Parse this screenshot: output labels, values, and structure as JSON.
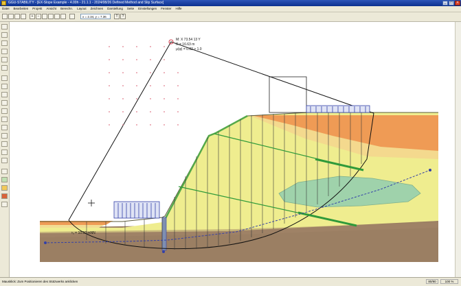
{
  "window": {
    "title": "GGU-STABILITY - [EX-Slope Example - 4.00h - 21.1.1 - 2024/08/26 Defined Method and Slip Surface]",
    "controls": [
      "_",
      "□",
      "×"
    ]
  },
  "menu": {
    "items": [
      "Datei",
      "Bearbeiten",
      "Projekt",
      "Ansicht",
      "Berechn.",
      "Layout",
      "Zeichnen",
      "Darstellung",
      "Seite",
      "Einstellungen",
      "Fenster",
      "Hilfe"
    ]
  },
  "toolbar": {
    "coordinate_readout": "x = 2.34, y = 7.36"
  },
  "drawing": {
    "labels": {
      "slip_circle_line1": "M: X 73.54 13 Y",
      "slip_circle_line2": "R = 16.63 m",
      "slip_circle_line3": "μ(φ) = 0.82 > 1.0",
      "groundwater": "ᶳ₀ = 10.50 mNN"
    },
    "colors": {
      "soil_clay_brown": "#9b7f63",
      "soil_yellow": "#efed8f",
      "soil_pale_yellow": "#f2dc93",
      "soil_orange": "#ef9b55",
      "lens_green": "#9fd2ab",
      "anchor_green": "#2f9a3a",
      "load_blue": "#3340a8"
    }
  },
  "status": {
    "hint": "Mausklick: Zum Positionieren des Stützwerks anklicken",
    "page": "80/90",
    "zoom": "100 %"
  }
}
